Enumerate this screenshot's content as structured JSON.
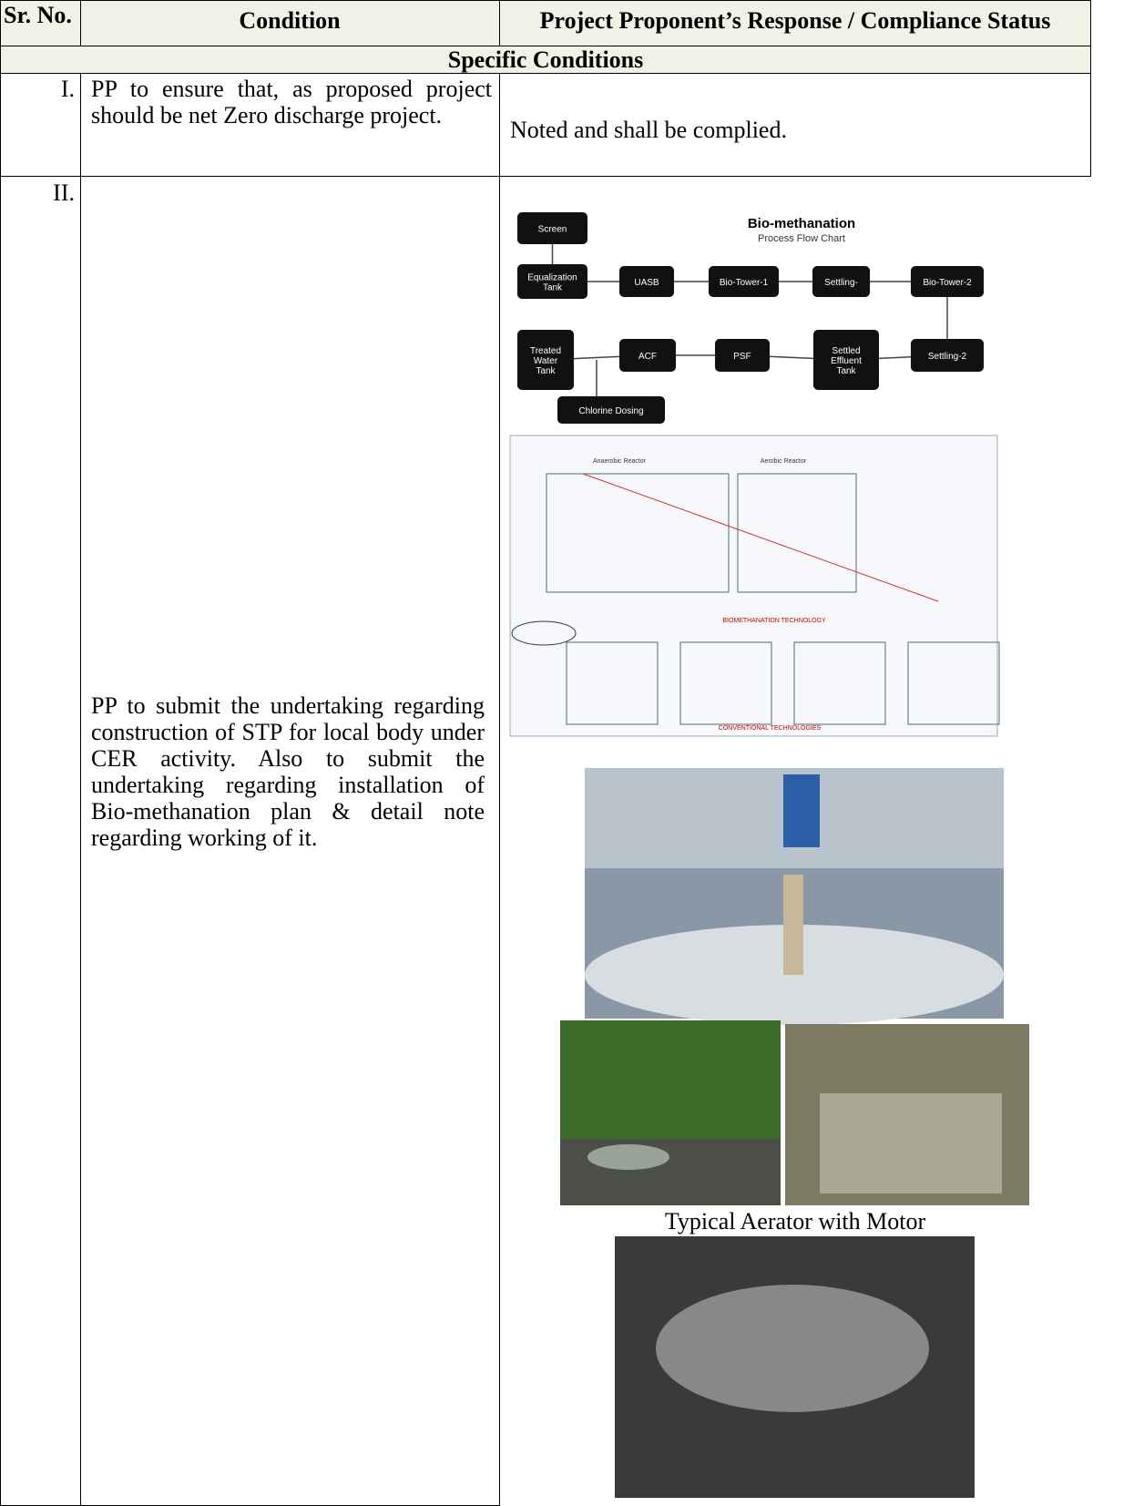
{
  "table": {
    "header": [
      "Sr. No.",
      "Condition",
      "Project Proponent’s Response / Compliance Status"
    ],
    "section": "Specific Conditions",
    "rows": [
      {
        "no": "I.",
        "condition": "PP to ensure that, as proposed project should be net Zero discharge project.",
        "response": "Noted and shall be complied."
      },
      {
        "no": "II.",
        "condition": "PP to submit the undertaking regarding construction of STP for local body under CER activity. Also to submit the undertaking regarding installation of Bio-methanation plan & detail note regarding working of it.",
        "flowchart": {
          "title": "Bio-methanation",
          "subtitle": "Process Flow Chart",
          "nodes": [
            [
              "Screen"
            ],
            [
              "Equalization",
              "Tank"
            ],
            [
              "UASB"
            ],
            [
              "Bio-Tower-1"
            ],
            [
              "Settling-"
            ],
            [
              "Bio-Tower-2"
            ],
            [
              "Settling-2"
            ],
            [
              "Settled",
              "Effluent",
              "Tank"
            ],
            [
              "PSF"
            ],
            [
              "ACF"
            ],
            [
              "Treated",
              "Water",
              "Tank"
            ],
            [
              "Chlorine Dosing"
            ]
          ]
        },
        "diagram": {
          "labels": [
            "Anaerobic Reactor",
            "Aerobic Reactor",
            "BIOMETHANATION TECHNOLOGY",
            "CONVENTIONAL TECHNOLOGIES"
          ]
        },
        "caption": "Typical Aerator with Motor"
      }
    ]
  }
}
